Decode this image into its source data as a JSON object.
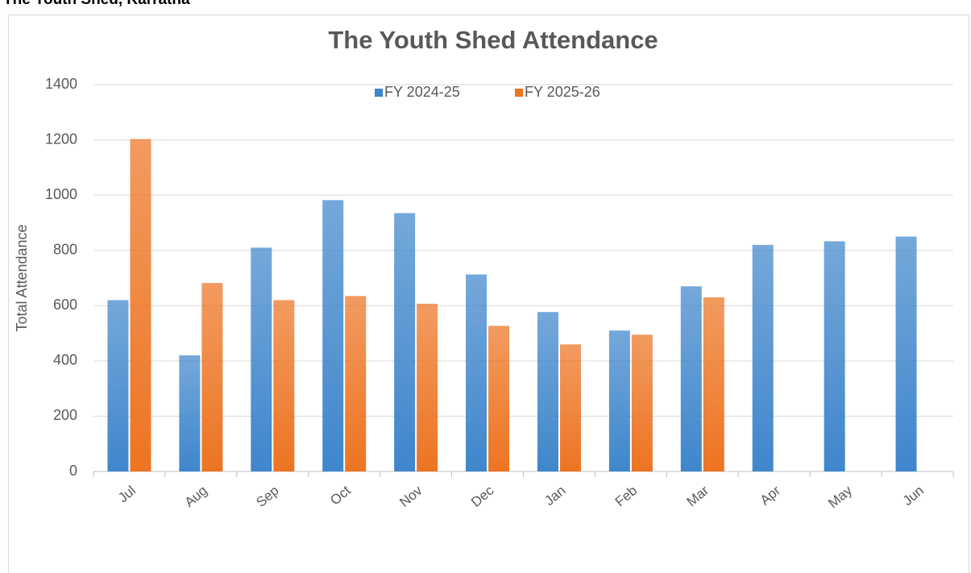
{
  "header": "The Youth Shed, Karratha",
  "chart_data": {
    "type": "bar",
    "title": "The Youth Shed Attendance",
    "y_label": "Total Attendance",
    "categories": [
      "Jul",
      "Aug",
      "Sep",
      "Oct",
      "Nov",
      "Dec",
      "Jan",
      "Feb",
      "Mar",
      "Apr",
      "May",
      "Jun"
    ],
    "series": [
      {
        "name": "FY 2024-25",
        "color": "#3f86cc",
        "values": [
          620,
          420,
          810,
          982,
          935,
          713,
          577,
          510,
          670,
          820,
          833,
          850
        ]
      },
      {
        "name": "FY 2025-26",
        "color": "#ed7422",
        "values": [
          1203,
          682,
          620,
          635,
          607,
          527,
          460,
          495,
          630,
          null,
          null,
          null
        ]
      }
    ],
    "ylim": [
      0,
      1400
    ],
    "yticks": [
      0,
      200,
      400,
      600,
      800,
      1000,
      1200,
      1400
    ],
    "grid": true,
    "legend": "top"
  }
}
